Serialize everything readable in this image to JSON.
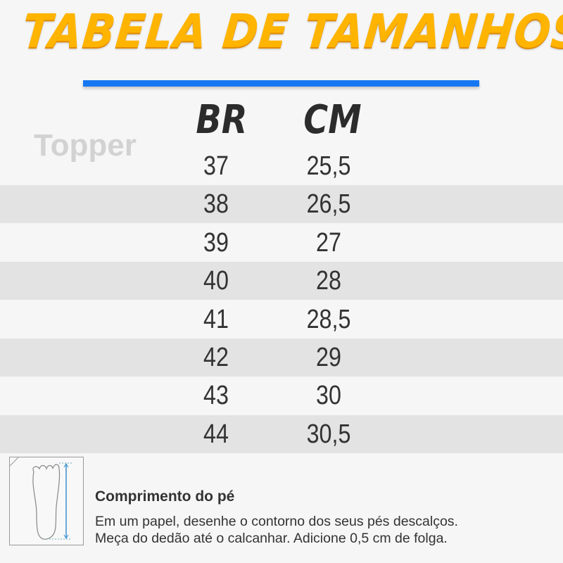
{
  "title": "TABELA DE TAMANHOS",
  "brand": "Topper",
  "colors": {
    "title": "#ffb400",
    "rule": "#1677f2",
    "row_alt": "#e3e3e3"
  },
  "table": {
    "headers": [
      "BR",
      "CM"
    ],
    "rows": [
      [
        "37",
        "25,5"
      ],
      [
        "38",
        "26,5"
      ],
      [
        "39",
        "27"
      ],
      [
        "40",
        "28"
      ],
      [
        "41",
        "28,5"
      ],
      [
        "42",
        "29"
      ],
      [
        "43",
        "30"
      ],
      [
        "44",
        "30,5"
      ]
    ]
  },
  "footer": {
    "icon": "foot-measure-icon",
    "title": "Comprimento do pé",
    "lines": [
      "Em um papel, desenhe o contorno dos seus pés descalços.",
      "Meça do dedão até o calcanhar. Adicione 0,5 cm de folga."
    ]
  }
}
